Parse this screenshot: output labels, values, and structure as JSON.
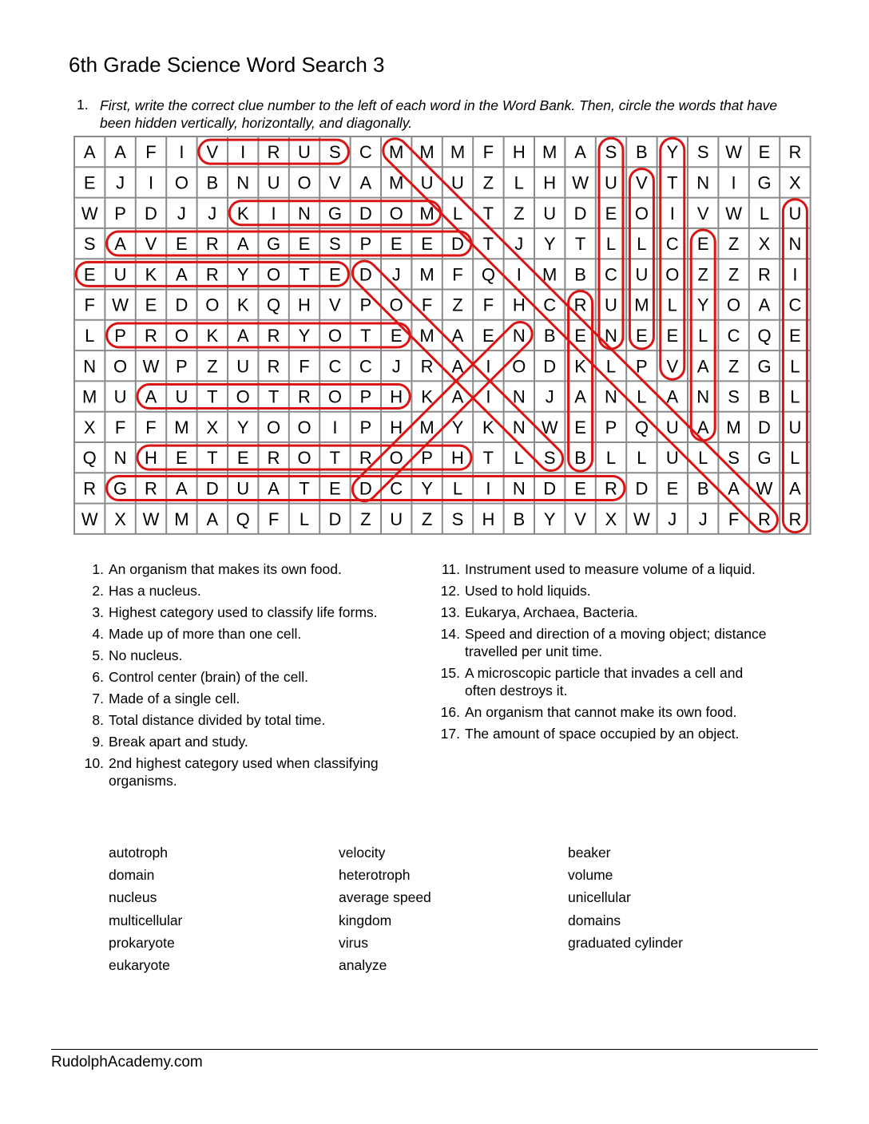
{
  "title": "6th Grade Science Word Search 3",
  "instructions": {
    "number": "1.",
    "text": "First, write the correct clue number to the left of each word in the Word Bank. Then, circle the words that have been hidden vertically, horizontally, and diagonally."
  },
  "colors": {
    "circle": "#d81414",
    "grid_line": "#8a8a8a"
  },
  "grid": [
    "AAFIVIRUSCMMMFHMASBYSWER",
    "EJIOBNUOVAMUUZLHWUVTNIGX",
    "WPDJJKINGDOMLTZUDEOIVWLU",
    "SAVERAGESPEEDTJYTLLCEZXN",
    "EUKARYOTEDJMFQIMBCUOZZRI",
    "FWEDOKQHVPOFZFHCRUMLYOAC",
    "LPROKARYOTEMAENBENEELCQE",
    "NOWPZURFCCJRAIODKLPVAZGL",
    "MUAUTOTROPHKAINJANLANSBL",
    "XFFMXYOOIPHMYKNWEPQUAMDU",
    "QNHETEROTROPHTLSBLLULSGL",
    "RGRADUATEDCYLINDERDEBAWA",
    "WXWMAQFLDZUZSHBYVXWJJFRR"
  ],
  "found_words": [
    {
      "word": "virus",
      "from": [
        0,
        4
      ],
      "to": [
        0,
        8
      ]
    },
    {
      "word": "kingdom",
      "from": [
        2,
        5
      ],
      "to": [
        2,
        11
      ]
    },
    {
      "word": "average speed",
      "from": [
        3,
        1
      ],
      "to": [
        3,
        12
      ]
    },
    {
      "word": "eukaryote",
      "from": [
        4,
        0
      ],
      "to": [
        4,
        8
      ]
    },
    {
      "word": "prokaryote",
      "from": [
        6,
        1
      ],
      "to": [
        6,
        10
      ]
    },
    {
      "word": "autotroph",
      "from": [
        8,
        2
      ],
      "to": [
        8,
        10
      ]
    },
    {
      "word": "heterotroph",
      "from": [
        10,
        2
      ],
      "to": [
        10,
        12
      ]
    },
    {
      "word": "graduated cylinder",
      "from": [
        11,
        1
      ],
      "to": [
        11,
        17
      ]
    },
    {
      "word": "multicellular",
      "from": [
        0,
        10
      ],
      "to": [
        12,
        22
      ]
    },
    {
      "word": "domains",
      "from": [
        4,
        9
      ],
      "to": [
        10,
        15
      ]
    },
    {
      "word": "domain",
      "from": [
        11,
        9
      ],
      "to": [
        6,
        14
      ]
    },
    {
      "word": "nucleus",
      "from": [
        6,
        17
      ],
      "to": [
        0,
        17
      ]
    },
    {
      "word": "volume",
      "from": [
        1,
        18
      ],
      "to": [
        6,
        18
      ]
    },
    {
      "word": "velocity",
      "from": [
        7,
        19
      ],
      "to": [
        0,
        19
      ]
    },
    {
      "word": "analyze",
      "from": [
        9,
        20
      ],
      "to": [
        3,
        20
      ]
    },
    {
      "word": "unicellular",
      "from": [
        2,
        23
      ],
      "to": [
        12,
        23
      ]
    },
    {
      "word": "beaker",
      "from": [
        10,
        16
      ],
      "to": [
        5,
        16
      ]
    }
  ],
  "clues_left": [
    {
      "n": "1.",
      "text": "An organism that makes its own food."
    },
    {
      "n": "2.",
      "text": "Has a nucleus."
    },
    {
      "n": "3.",
      "text": "Highest category used to classify life forms."
    },
    {
      "n": "4.",
      "text": "Made up of more than one cell."
    },
    {
      "n": "5.",
      "text": "No nucleus."
    },
    {
      "n": "6.",
      "text": "Control center (brain) of the cell."
    },
    {
      "n": "7.",
      "text": "Made of a single cell."
    },
    {
      "n": "8.",
      "text": "Total distance divided by total time."
    },
    {
      "n": "9.",
      "text": "Break apart and study."
    },
    {
      "n": "10.",
      "text": "2nd highest category used when classifying organisms."
    }
  ],
  "clues_right": [
    {
      "n": "11.",
      "text": "Instrument used to measure volume of a liquid."
    },
    {
      "n": "12.",
      "text": "Used to hold liquids."
    },
    {
      "n": "13.",
      "text": "Eukarya, Archaea, Bacteria."
    },
    {
      "n": "14.",
      "text": "Speed and direction of a moving object; distance travelled per unit time."
    },
    {
      "n": "15.",
      "text": "A microscopic particle that invades a cell and often destroys it."
    },
    {
      "n": "16.",
      "text": "An organism that cannot make its own food."
    },
    {
      "n": "17.",
      "text": "The amount of space occupied by an object."
    }
  ],
  "word_bank": [
    [
      "autotroph",
      "domain",
      "nucleus",
      "multicellular",
      "prokaryote",
      "eukaryote"
    ],
    [
      "velocity",
      "heterotroph",
      "average speed",
      "kingdom",
      "virus",
      "analyze"
    ],
    [
      "beaker",
      "volume",
      "unicellular",
      "domains",
      "graduated cylinder"
    ]
  ],
  "footer": "RudolphAcademy.com"
}
